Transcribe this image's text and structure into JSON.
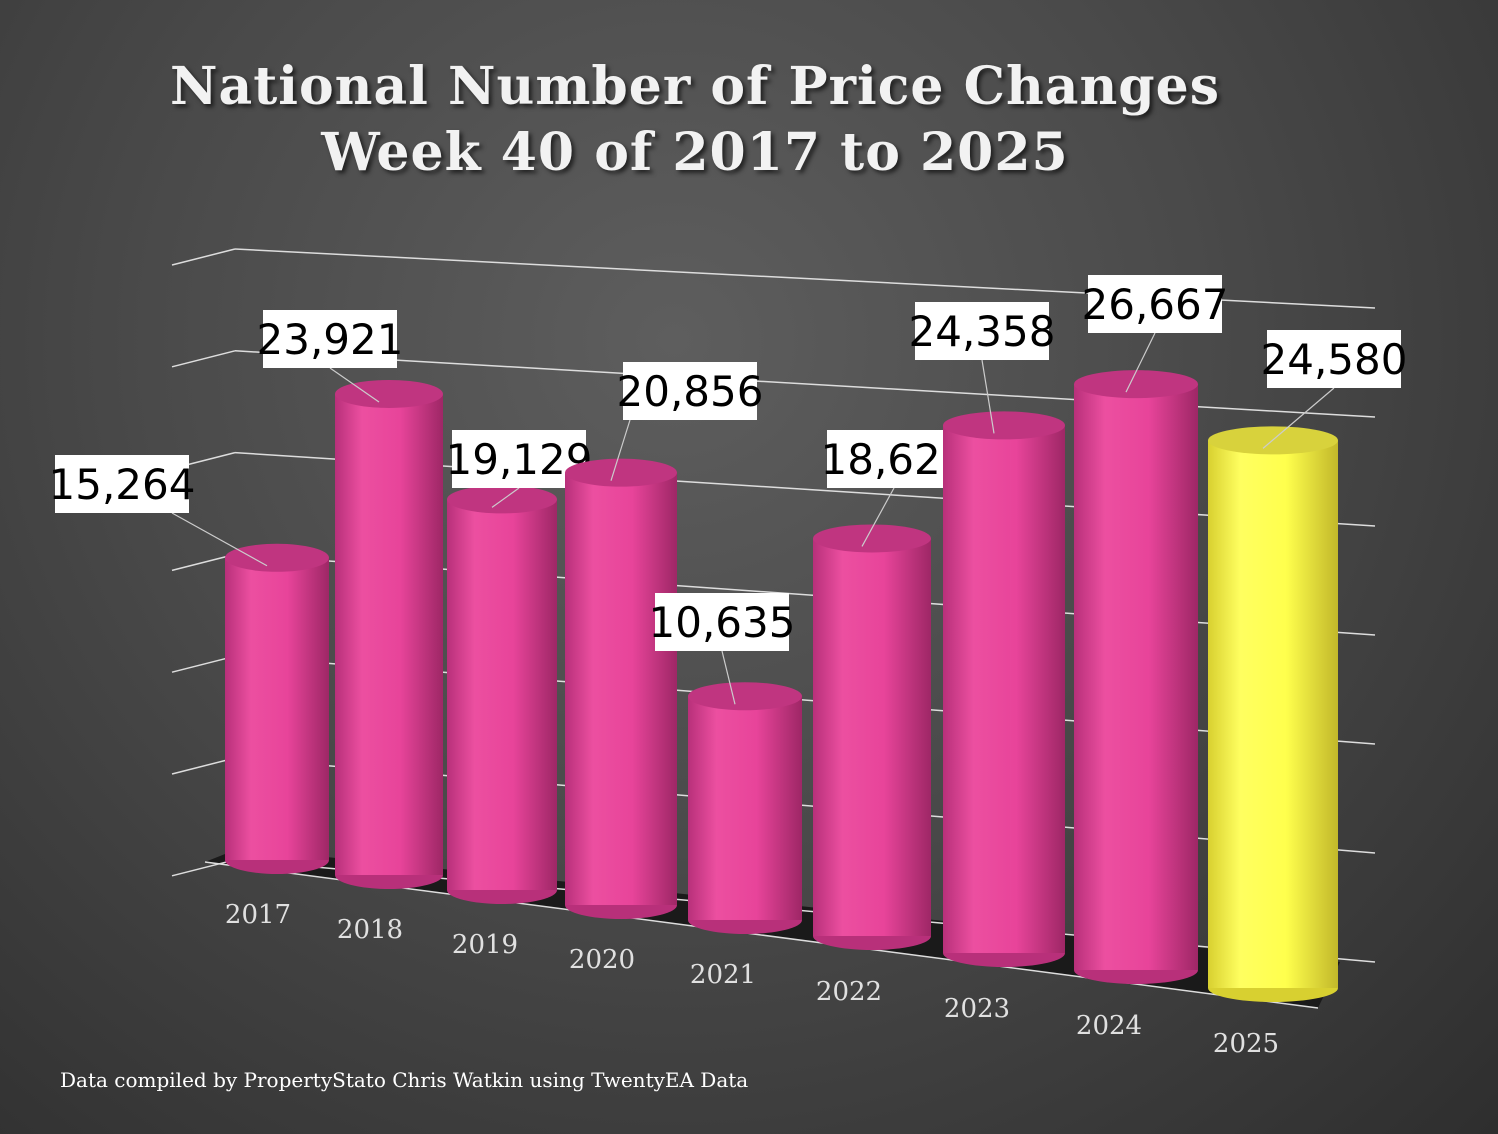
{
  "chart_data": {
    "type": "bar",
    "title": "National Number of Price Changes",
    "subtitle": "Week 40 of 2017 to 2025",
    "categories": [
      "2017",
      "2018",
      "2019",
      "2020",
      "2021",
      "2022",
      "2023",
      "2024",
      "2025"
    ],
    "values": [
      15264,
      23921,
      19129,
      20856,
      10635,
      18621,
      24358,
      26667,
      24580
    ],
    "data_labels": [
      "15,264",
      "23,921",
      "19,129",
      "20,856",
      "10,635",
      "18,621",
      "24,358",
      "26,667",
      "24,580"
    ],
    "highlight_category": "2025",
    "xlabel": "",
    "ylabel": "",
    "ylim": [
      0,
      30000
    ],
    "grid": true,
    "style": "3d-cylinder",
    "colors": {
      "bar": "#e8449a",
      "bar_top": "#c03580",
      "highlight": "#ffff4d",
      "highlight_top": "#d8d23c"
    }
  },
  "footer": "Data compiled by PropertyStato Chris Watkin using TwentyEA Data"
}
